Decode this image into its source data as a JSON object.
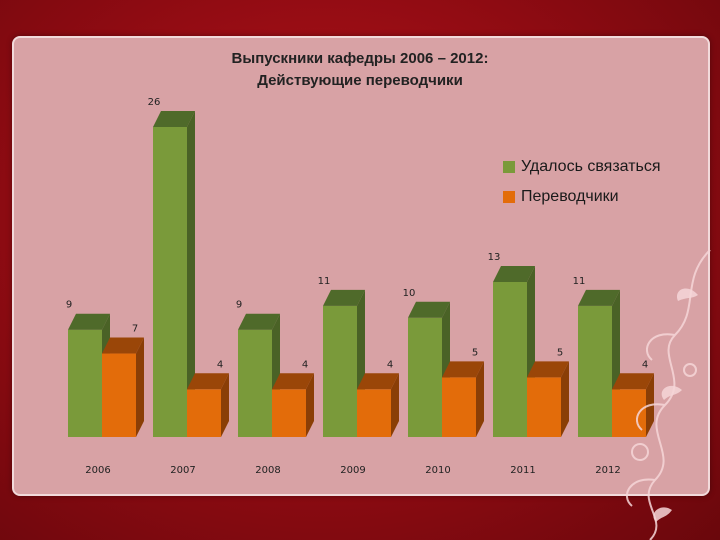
{
  "slide": {
    "title_line1": "Выпускники кафедры 2006 – 2012:",
    "title_line2": "Действующие переводчики"
  },
  "chart_data": {
    "type": "bar",
    "title": "Выпускники кафедры 2006 – 2012: Действующие переводчики",
    "categories": [
      "2006",
      "2007",
      "2008",
      "2009",
      "2010",
      "2011",
      "2012"
    ],
    "series": [
      {
        "name": "Удалось связаться",
        "color": "#7a9a3a",
        "values": [
          9,
          26,
          9,
          11,
          10,
          13,
          11
        ]
      },
      {
        "name": "Переводчики",
        "color": "#e36c0a",
        "values": [
          7,
          4,
          4,
          4,
          5,
          5,
          4
        ]
      }
    ],
    "ylim": [
      0,
      26
    ],
    "grid": false,
    "legend_position": "right"
  }
}
